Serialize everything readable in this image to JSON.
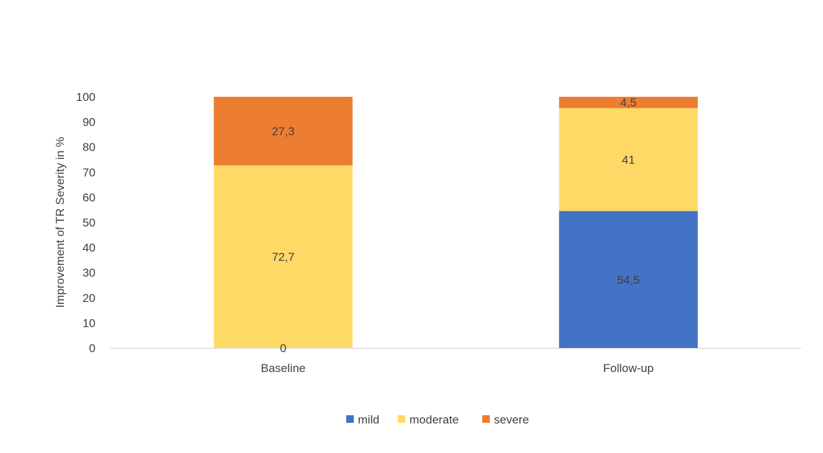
{
  "chart_data": {
    "type": "bar",
    "stacked": true,
    "title": "",
    "xlabel": "",
    "ylabel": "Improvement of TR Severity  in %",
    "ylim": [
      0,
      100
    ],
    "yticks": [
      0,
      10,
      20,
      30,
      40,
      50,
      60,
      70,
      80,
      90,
      100
    ],
    "grid": false,
    "legend_position": "bottom",
    "categories": [
      "Baseline",
      "Follow-up"
    ],
    "series": [
      {
        "name": "mild",
        "color": "#4472C4",
        "values": [
          0,
          54.5
        ],
        "labels": [
          "0",
          "54,5"
        ]
      },
      {
        "name": "moderate",
        "color": "#FFD966",
        "values": [
          72.7,
          41
        ],
        "labels": [
          "72,7",
          "41"
        ]
      },
      {
        "name": "severe",
        "color": "#ED7D31",
        "values": [
          27.3,
          4.5
        ],
        "labels": [
          "27,3",
          "4,5"
        ]
      }
    ]
  }
}
